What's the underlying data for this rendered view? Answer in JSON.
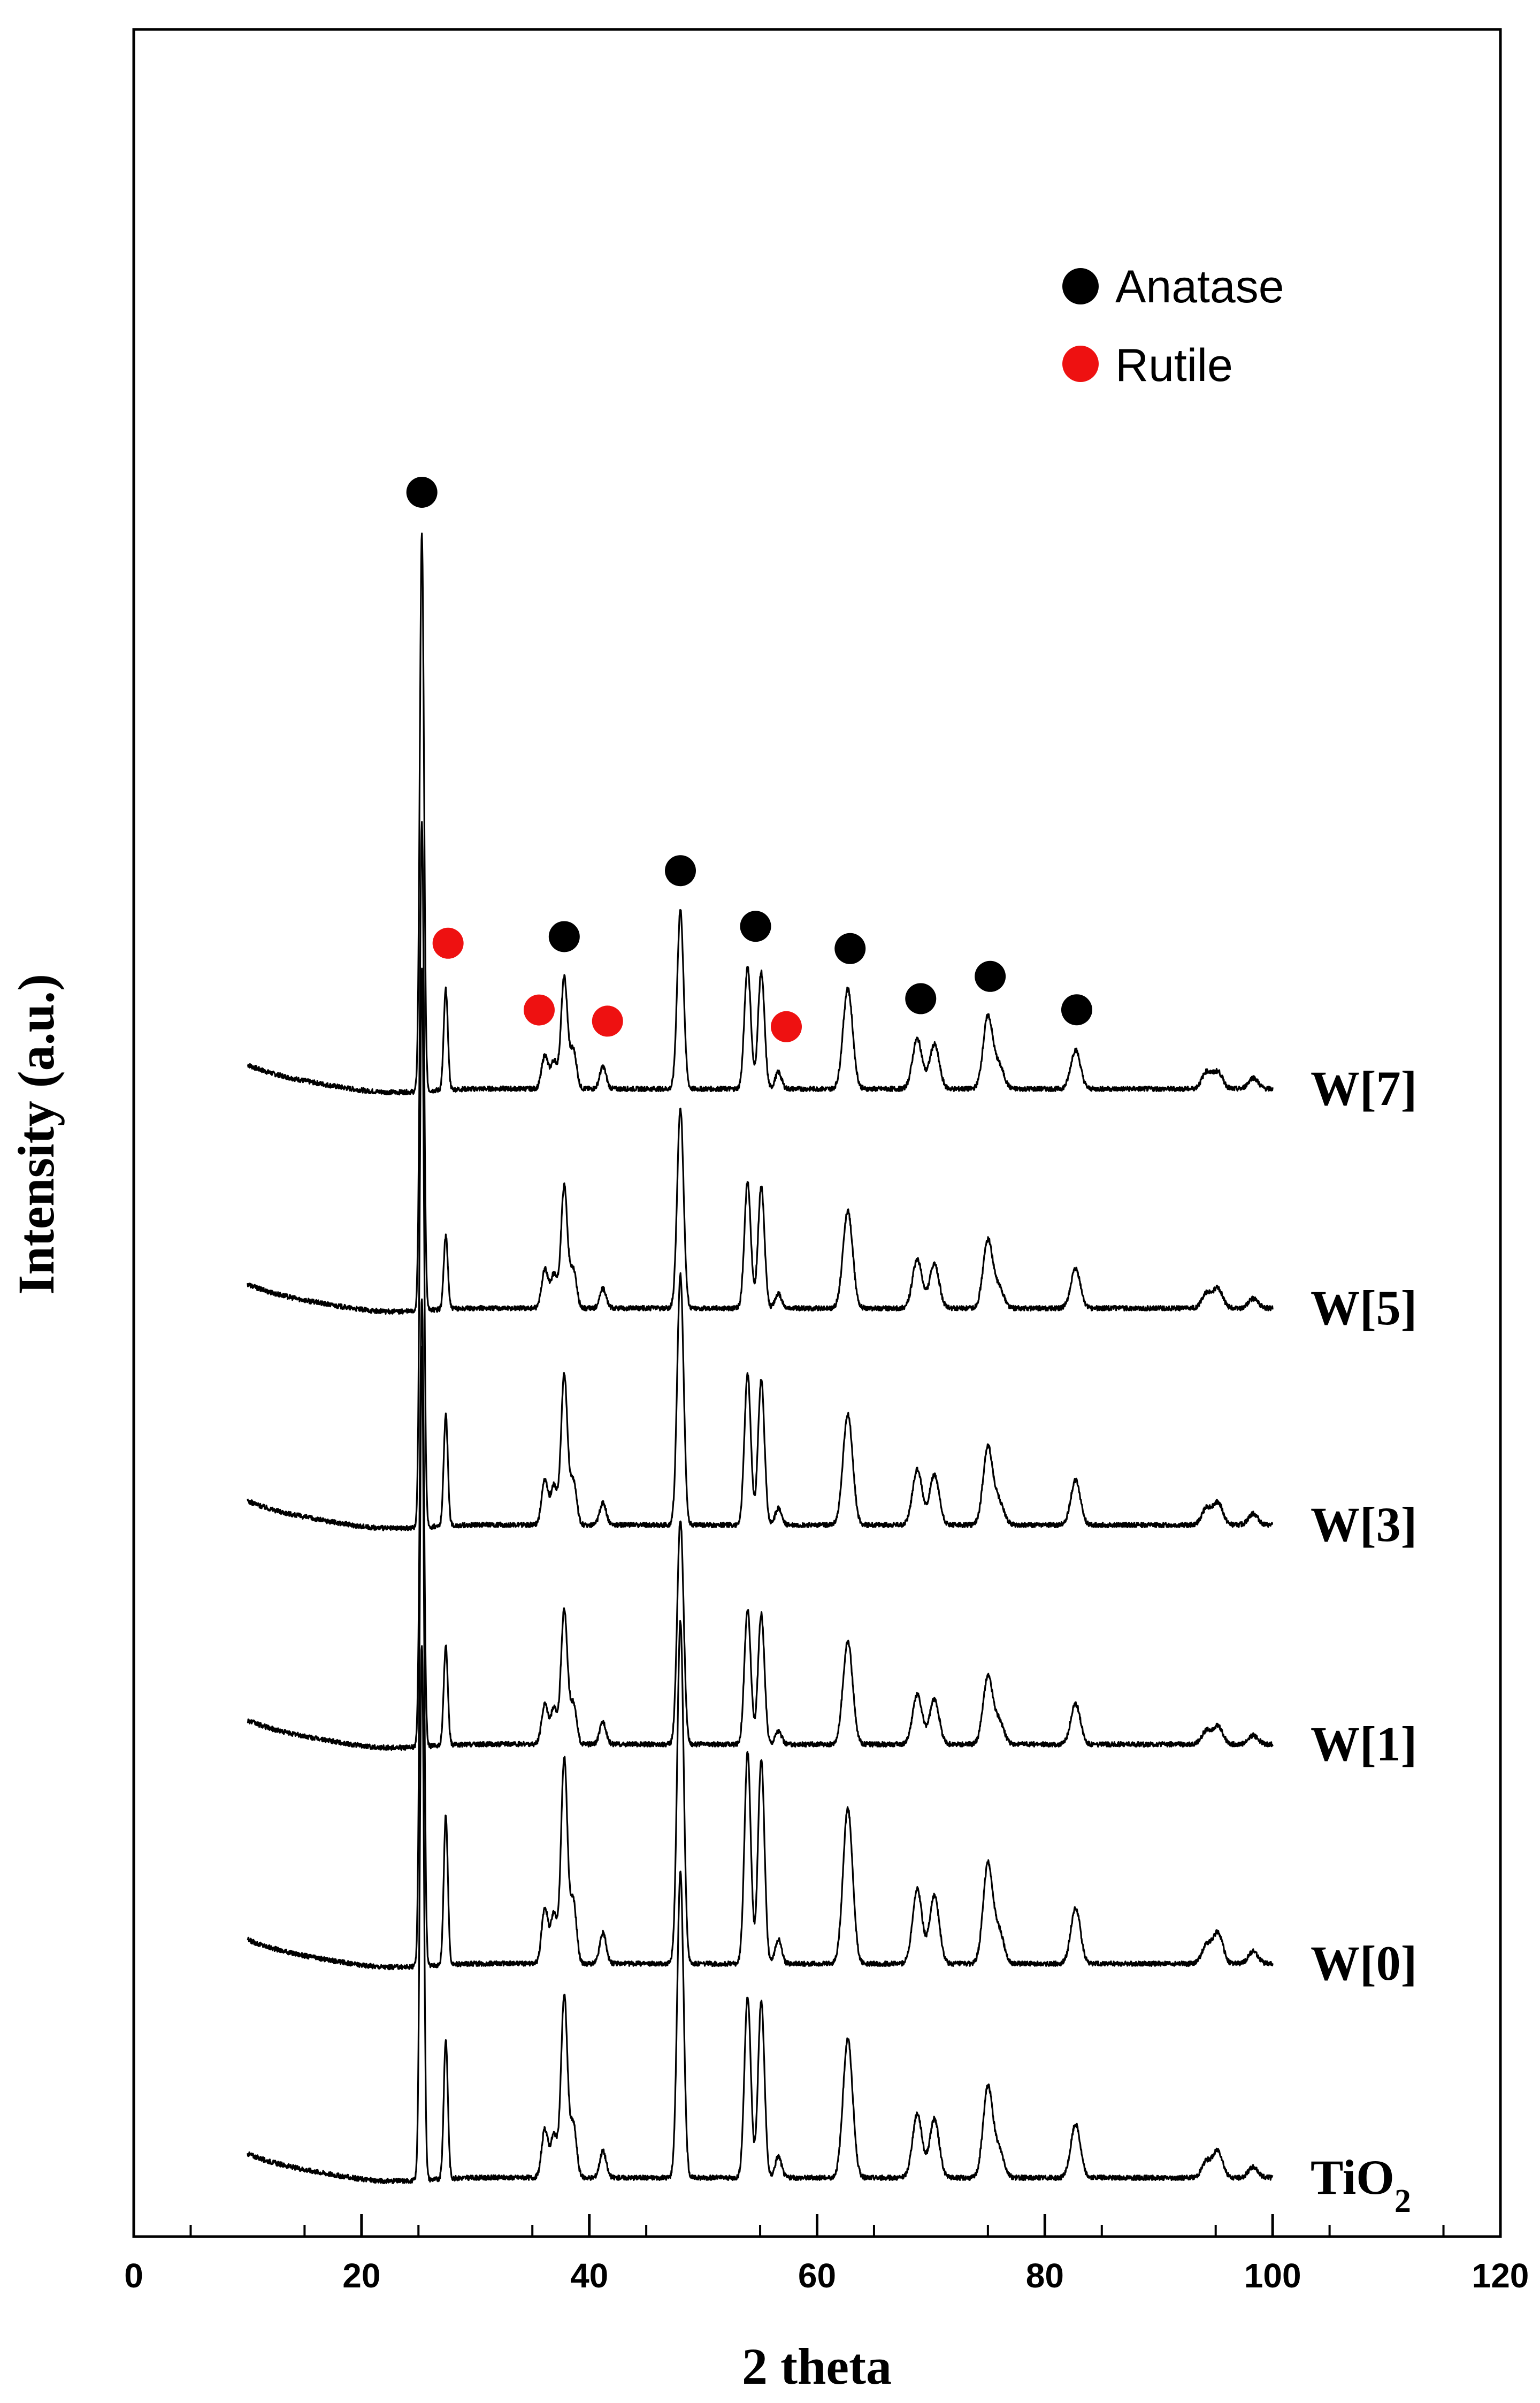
{
  "chart_data": {
    "type": "line",
    "title": "",
    "xlabel": "2 theta",
    "ylabel": "Intensity (a.u.)",
    "xlim": [
      0,
      120
    ],
    "x_ticks": [
      "0",
      "20",
      "40",
      "60",
      "80",
      "100",
      "120"
    ],
    "y_ticks_shown": false,
    "grid": false,
    "x_range_of_data": [
      10,
      100
    ],
    "series": [
      {
        "name": "W[7]",
        "label_sub": "",
        "peaks": [
          {
            "x": 25.3,
            "h": 100
          },
          {
            "x": 27.4,
            "h": 18
          },
          {
            "x": 36.1,
            "h": 6
          },
          {
            "x": 36.9,
            "h": 5
          },
          {
            "x": 37.8,
            "h": 20
          },
          {
            "x": 38.6,
            "h": 7
          },
          {
            "x": 41.2,
            "h": 4
          },
          {
            "x": 48.0,
            "h": 32
          },
          {
            "x": 53.9,
            "h": 22
          },
          {
            "x": 55.1,
            "h": 21
          },
          {
            "x": 56.6,
            "h": 3
          },
          {
            "x": 62.7,
            "h": 18
          },
          {
            "x": 68.8,
            "h": 9
          },
          {
            "x": 70.3,
            "h": 8
          },
          {
            "x": 75.0,
            "h": 13
          },
          {
            "x": 76.0,
            "h": 4
          },
          {
            "x": 82.7,
            "h": 7
          },
          {
            "x": 94.2,
            "h": 3
          },
          {
            "x": 95.2,
            "h": 3
          },
          {
            "x": 98.3,
            "h": 2
          }
        ]
      },
      {
        "name": "W[5]",
        "label_sub": "",
        "peaks": [
          {
            "x": 25.3,
            "h": 100
          },
          {
            "x": 27.4,
            "h": 15
          },
          {
            "x": 36.1,
            "h": 8
          },
          {
            "x": 36.9,
            "h": 7
          },
          {
            "x": 37.8,
            "h": 25
          },
          {
            "x": 38.6,
            "h": 8
          },
          {
            "x": 41.2,
            "h": 4
          },
          {
            "x": 48.0,
            "h": 41
          },
          {
            "x": 53.9,
            "h": 26
          },
          {
            "x": 55.1,
            "h": 25
          },
          {
            "x": 56.6,
            "h": 3
          },
          {
            "x": 62.7,
            "h": 20
          },
          {
            "x": 68.8,
            "h": 10
          },
          {
            "x": 70.3,
            "h": 9
          },
          {
            "x": 75.0,
            "h": 14
          },
          {
            "x": 76.0,
            "h": 4
          },
          {
            "x": 82.7,
            "h": 8
          },
          {
            "x": 94.2,
            "h": 3
          },
          {
            "x": 95.2,
            "h": 4
          },
          {
            "x": 98.3,
            "h": 2
          }
        ]
      },
      {
        "name": "W[3]",
        "label_sub": "",
        "peaks": [
          {
            "x": 25.3,
            "h": 100
          },
          {
            "x": 27.4,
            "h": 20
          },
          {
            "x": 36.1,
            "h": 8
          },
          {
            "x": 36.9,
            "h": 7
          },
          {
            "x": 37.8,
            "h": 27
          },
          {
            "x": 38.6,
            "h": 8
          },
          {
            "x": 41.2,
            "h": 4
          },
          {
            "x": 48.0,
            "h": 45
          },
          {
            "x": 53.9,
            "h": 27
          },
          {
            "x": 55.1,
            "h": 26
          },
          {
            "x": 56.6,
            "h": 3
          },
          {
            "x": 62.7,
            "h": 20
          },
          {
            "x": 68.8,
            "h": 10
          },
          {
            "x": 70.3,
            "h": 9
          },
          {
            "x": 75.0,
            "h": 14
          },
          {
            "x": 76.0,
            "h": 4
          },
          {
            "x": 82.7,
            "h": 8
          },
          {
            "x": 94.2,
            "h": 3
          },
          {
            "x": 95.2,
            "h": 4
          },
          {
            "x": 98.3,
            "h": 2
          }
        ]
      },
      {
        "name": "W[1]",
        "label_sub": "",
        "peaks": [
          {
            "x": 25.3,
            "h": 100
          },
          {
            "x": 27.4,
            "h": 22
          },
          {
            "x": 36.1,
            "h": 9
          },
          {
            "x": 36.9,
            "h": 8
          },
          {
            "x": 37.8,
            "h": 30
          },
          {
            "x": 38.6,
            "h": 9
          },
          {
            "x": 41.2,
            "h": 5
          },
          {
            "x": 48.0,
            "h": 50
          },
          {
            "x": 53.9,
            "h": 30
          },
          {
            "x": 55.1,
            "h": 29
          },
          {
            "x": 56.6,
            "h": 3
          },
          {
            "x": 62.7,
            "h": 23
          },
          {
            "x": 68.8,
            "h": 11
          },
          {
            "x": 70.3,
            "h": 10
          },
          {
            "x": 75.0,
            "h": 15
          },
          {
            "x": 76.0,
            "h": 5
          },
          {
            "x": 82.7,
            "h": 9
          },
          {
            "x": 94.2,
            "h": 3
          },
          {
            "x": 95.2,
            "h": 4
          },
          {
            "x": 98.3,
            "h": 2
          }
        ]
      },
      {
        "name": "W[0]",
        "label_sub": "",
        "peaks": [
          {
            "x": 25.3,
            "h": 100
          },
          {
            "x": 27.4,
            "h": 24
          },
          {
            "x": 36.1,
            "h": 9
          },
          {
            "x": 36.9,
            "h": 8
          },
          {
            "x": 37.8,
            "h": 33
          },
          {
            "x": 38.6,
            "h": 10
          },
          {
            "x": 41.2,
            "h": 5
          },
          {
            "x": 48.0,
            "h": 55
          },
          {
            "x": 53.9,
            "h": 34
          },
          {
            "x": 55.1,
            "h": 33
          },
          {
            "x": 56.6,
            "h": 4
          },
          {
            "x": 62.7,
            "h": 25
          },
          {
            "x": 68.8,
            "h": 12
          },
          {
            "x": 70.3,
            "h": 11
          },
          {
            "x": 75.0,
            "h": 16
          },
          {
            "x": 76.0,
            "h": 5
          },
          {
            "x": 82.7,
            "h": 9
          },
          {
            "x": 94.2,
            "h": 3
          },
          {
            "x": 95.2,
            "h": 5
          },
          {
            "x": 98.3,
            "h": 2
          }
        ]
      },
      {
        "name": "TiO",
        "label_sub": "2",
        "peaks": [
          {
            "x": 25.3,
            "h": 100
          },
          {
            "x": 27.4,
            "h": 26
          },
          {
            "x": 36.1,
            "h": 9
          },
          {
            "x": 36.9,
            "h": 8
          },
          {
            "x": 37.8,
            "h": 34
          },
          {
            "x": 38.6,
            "h": 10
          },
          {
            "x": 41.2,
            "h": 5
          },
          {
            "x": 48.0,
            "h": 57
          },
          {
            "x": 53.9,
            "h": 34
          },
          {
            "x": 55.1,
            "h": 33
          },
          {
            "x": 56.6,
            "h": 4
          },
          {
            "x": 62.7,
            "h": 26
          },
          {
            "x": 68.8,
            "h": 12
          },
          {
            "x": 70.3,
            "h": 11
          },
          {
            "x": 75.0,
            "h": 17
          },
          {
            "x": 76.0,
            "h": 5
          },
          {
            "x": 82.7,
            "h": 10
          },
          {
            "x": 94.2,
            "h": 3
          },
          {
            "x": 95.2,
            "h": 5
          },
          {
            "x": 98.3,
            "h": 2
          }
        ]
      }
    ],
    "legend": {
      "placement": "top-right",
      "entries": [
        {
          "label": "Anatase",
          "color": "#000000"
        },
        {
          "label": "Rutile",
          "color": "#ee1111"
        }
      ]
    },
    "phase_markers": {
      "anatase": [
        25.3,
        37.8,
        48.0,
        54.6,
        62.9,
        69.1,
        75.2,
        82.8
      ],
      "rutile": [
        27.6,
        35.6,
        41.6,
        57.3
      ]
    },
    "colors": {
      "line": "#000000",
      "anatase": "#000000",
      "rutile": "#ee1111"
    }
  }
}
